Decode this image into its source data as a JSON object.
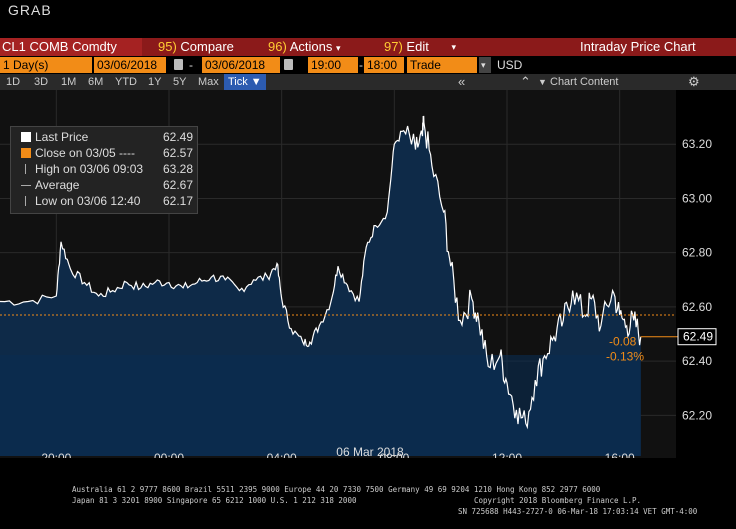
{
  "window": {
    "title": "GRAB"
  },
  "menubar": {
    "ticker": "CL1 COMB Comdty",
    "compare_num": "95)",
    "compare_label": "Compare",
    "actions_num": "96)",
    "actions_label": "Actions",
    "edit_num": "97)",
    "edit_label": "Edit",
    "panel_title": "Intraday Price Chart"
  },
  "options": {
    "period": "1 Day(s)",
    "start_date": "03/06/2018",
    "separator": "-",
    "end_date": "03/06/2018",
    "start_time": "19:00",
    "end_time": "18:00",
    "field": "Trade",
    "currency": "USD"
  },
  "tabs": {
    "items": [
      "1D",
      "3D",
      "1M",
      "6M",
      "YTD",
      "1Y",
      "5Y",
      "Max"
    ],
    "active": "Tick ▼",
    "chart_content": "Chart Content"
  },
  "legend": {
    "last_price_label": "Last Price",
    "last_price_value": "62.49",
    "close_label": "Close on 03/05 ----",
    "close_value": "62.57",
    "high_label": "High on 03/06 09:03",
    "high_value": "63.28",
    "average_label": "Average",
    "average_value": "62.67",
    "low_label": "Low on 03/06 12:40",
    "low_value": "62.17"
  },
  "chart_data": {
    "type": "area",
    "x_ticks": [
      "20:00",
      "00:00",
      "04:00",
      "08:00",
      "12:00",
      "16:00"
    ],
    "date_label": "06 Mar 2018",
    "y_ticks": [
      "63.20",
      "63.00",
      "62.80",
      "62.60",
      "62.40",
      "62.20"
    ],
    "ylim": [
      62.05,
      63.4
    ],
    "last_price_tag": "62.49",
    "change": "-0.08",
    "change_pct": "-0.13%",
    "close_line": 62.57,
    "x": [
      "18:00",
      "19:00",
      "20:00",
      "20:10",
      "20:30",
      "21:00",
      "21:30",
      "22:00",
      "22:30",
      "23:00",
      "23:30",
      "00:00",
      "00:30",
      "01:00",
      "01:30",
      "02:00",
      "02:30",
      "03:00",
      "03:30",
      "03:50",
      "04:00",
      "04:20",
      "04:45",
      "05:00",
      "05:20",
      "05:45",
      "06:00",
      "06:20",
      "06:45",
      "07:00",
      "07:20",
      "07:45",
      "08:00",
      "08:20",
      "08:45",
      "09:00",
      "09:03",
      "09:20",
      "09:45",
      "10:00",
      "10:20",
      "10:45",
      "11:00",
      "11:20",
      "11:45",
      "12:00",
      "12:20",
      "12:40",
      "13:00",
      "13:20",
      "13:40",
      "14:00",
      "14:20",
      "14:45",
      "15:00",
      "15:20",
      "15:45",
      "16:00",
      "16:15",
      "16:30",
      "16:45"
    ],
    "values": [
      62.62,
      62.62,
      62.64,
      62.84,
      62.74,
      62.69,
      62.64,
      62.66,
      62.69,
      62.67,
      62.69,
      62.69,
      62.67,
      62.69,
      62.71,
      62.7,
      62.66,
      62.7,
      62.71,
      62.76,
      62.63,
      62.52,
      62.47,
      62.47,
      62.53,
      62.62,
      62.75,
      62.68,
      62.62,
      62.82,
      62.9,
      62.95,
      63.2,
      63.25,
      63.18,
      63.23,
      63.28,
      63.12,
      62.95,
      62.75,
      62.55,
      62.63,
      62.55,
      62.38,
      62.42,
      62.32,
      62.22,
      62.17,
      62.33,
      62.42,
      62.49,
      62.55,
      62.66,
      62.57,
      62.63,
      62.53,
      62.66,
      62.57,
      62.53,
      62.55,
      62.49
    ]
  },
  "footer": {
    "line1": "Australia 61 2 9777 8600 Brazil 5511 2395 9000 Europe 44 20 7330 7500 Germany 49 69 9204 1210 Hong Kong 852 2977 6000",
    "line2a": "Japan 81 3 3201 8900     Singapore 65 6212 1000     U.S. 1 212 318 2000",
    "line2b": "Copyright 2018 Bloomberg Finance L.P.",
    "line3": "SN 725688 H443-2727-0 06-Mar-18 17:03:14 VET  GMT-4:00"
  },
  "colors": {
    "menubar": "#8b1a1a",
    "orange": "#f28c17",
    "area_fill": "#0e2a48",
    "line": "#ffffff",
    "close_line": "#f28c17",
    "tick_tab": "#2c5bb0"
  }
}
